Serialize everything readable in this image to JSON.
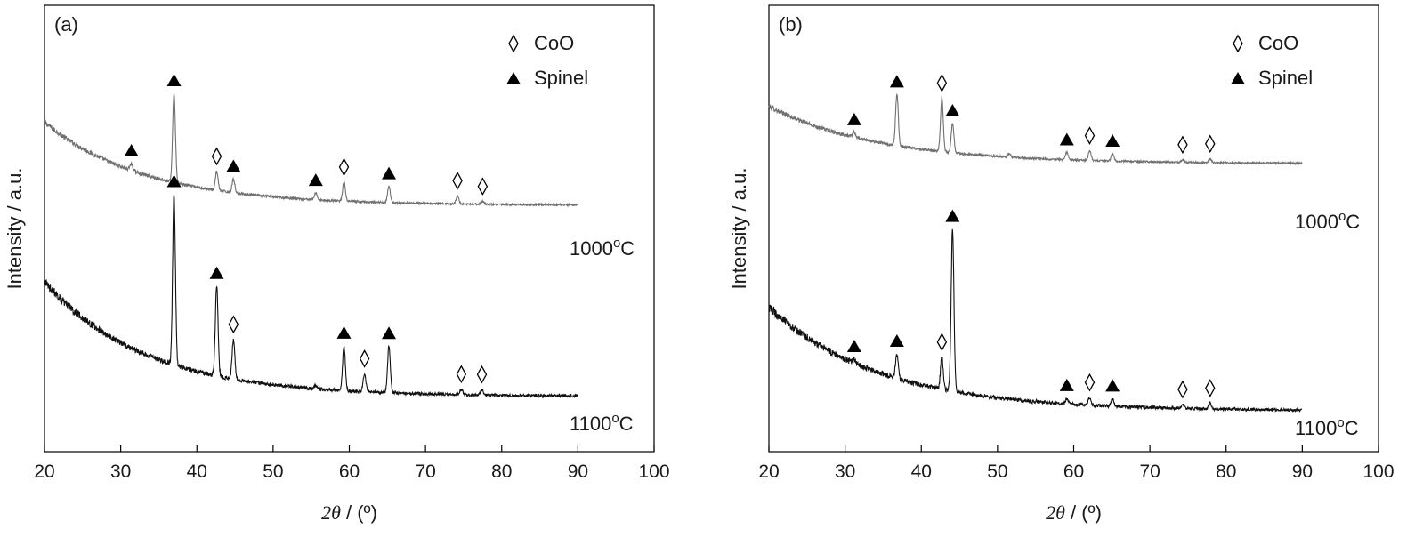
{
  "chart_data": [
    {
      "type": "line",
      "panel_label": "(a)",
      "xlabel_symbol": "2θ",
      "xlabel_unit": " / (º)",
      "ylabel": "Intensity / a.u.",
      "xlim": [
        20,
        100
      ],
      "x_ticks": [
        20,
        30,
        40,
        50,
        60,
        70,
        80,
        90,
        100
      ],
      "legend": {
        "position": "top-right",
        "entries": [
          {
            "marker": "diamond-open",
            "label": "CoO"
          },
          {
            "marker": "triangle-filled",
            "label": "Spinel"
          }
        ]
      },
      "series": [
        {
          "name": "1000ºC",
          "label_text": "1000ºC",
          "color": "#707070",
          "x_range": [
            20,
            90
          ],
          "baseline_start": 0.78,
          "baseline_end": 0.165,
          "decay": 11,
          "noise": 0.012,
          "peaks": [
            {
              "x": 31.4,
              "h": 0.05,
              "marker": "triangle-filled"
            },
            {
              "x": 37.0,
              "h": 0.66,
              "marker": "triangle-filled"
            },
            {
              "x": 42.6,
              "h": 0.14,
              "marker": "diamond-open"
            },
            {
              "x": 44.8,
              "h": 0.1,
              "marker": "triangle-filled"
            },
            {
              "x": 55.6,
              "h": 0.05,
              "marker": "triangle-filled"
            },
            {
              "x": 59.3,
              "h": 0.14,
              "marker": "diamond-open"
            },
            {
              "x": 65.2,
              "h": 0.12,
              "marker": "triangle-filled"
            },
            {
              "x": 74.2,
              "h": 0.06,
              "marker": "diamond-open"
            },
            {
              "x": 77.5,
              "h": 0.02,
              "marker": "diamond-open"
            }
          ]
        },
        {
          "name": "1100ºC",
          "label_text": "1100ºC",
          "color": "#111111",
          "x_range": [
            20,
            90
          ],
          "baseline_start": 0.7,
          "baseline_end": 0.06,
          "decay": 11,
          "noise": 0.014,
          "peaks": [
            {
              "x": 37.0,
              "h": 0.95,
              "marker": "triangle-filled"
            },
            {
              "x": 42.6,
              "h": 0.5,
              "marker": "triangle-filled"
            },
            {
              "x": 44.8,
              "h": 0.22,
              "marker": "diamond-open"
            },
            {
              "x": 55.6,
              "h": 0.02,
              "marker": null
            },
            {
              "x": 59.3,
              "h": 0.25,
              "marker": "triangle-filled"
            },
            {
              "x": 62.0,
              "h": 0.1,
              "marker": "diamond-open"
            },
            {
              "x": 65.2,
              "h": 0.26,
              "marker": "triangle-filled"
            },
            {
              "x": 74.7,
              "h": 0.03,
              "marker": "diamond-open"
            },
            {
              "x": 77.4,
              "h": 0.03,
              "marker": "diamond-open"
            }
          ]
        }
      ]
    },
    {
      "type": "line",
      "panel_label": "(b)",
      "xlabel_symbol": "2θ",
      "xlabel_unit": " / (º)",
      "ylabel": "Intensity / a.u.",
      "xlim": [
        20,
        100
      ],
      "x_ticks": [
        20,
        30,
        40,
        50,
        60,
        70,
        80,
        90,
        100
      ],
      "legend": {
        "position": "top-right",
        "entries": [
          {
            "marker": "diamond-open",
            "label": "CoO"
          },
          {
            "marker": "triangle-filled",
            "label": "Spinel"
          }
        ]
      },
      "series": [
        {
          "name": "1000ºC",
          "label_text": "1000ºC",
          "color": "#707070",
          "x_range": [
            20,
            90
          ],
          "baseline_start": 0.82,
          "baseline_end": 0.35,
          "decay": 10,
          "noise": 0.012,
          "peaks": [
            {
              "x": 31.2,
              "h": 0.04,
              "marker": "triangle-filled"
            },
            {
              "x": 36.8,
              "h": 0.42,
              "marker": "triangle-filled"
            },
            {
              "x": 42.7,
              "h": 0.44,
              "marker": "diamond-open"
            },
            {
              "x": 44.1,
              "h": 0.24,
              "marker": "triangle-filled"
            },
            {
              "x": 51.5,
              "h": 0.03,
              "marker": null
            },
            {
              "x": 59.1,
              "h": 0.06,
              "marker": "triangle-filled"
            },
            {
              "x": 62.1,
              "h": 0.08,
              "marker": "diamond-open"
            },
            {
              "x": 65.1,
              "h": 0.06,
              "marker": "triangle-filled"
            },
            {
              "x": 74.3,
              "h": 0.02,
              "marker": "diamond-open"
            },
            {
              "x": 77.9,
              "h": 0.03,
              "marker": "diamond-open"
            }
          ]
        },
        {
          "name": "1100ºC",
          "label_text": "1100ºC",
          "color": "#111111",
          "x_range": [
            20,
            90
          ],
          "baseline_start": 0.55,
          "baseline_end": 0.0,
          "decay": 10,
          "noise": 0.014,
          "peaks": [
            {
              "x": 31.2,
              "h": 0.02,
              "marker": "triangle-filled"
            },
            {
              "x": 36.8,
              "h": 0.13,
              "marker": "triangle-filled"
            },
            {
              "x": 42.7,
              "h": 0.17,
              "marker": "diamond-open"
            },
            {
              "x": 44.1,
              "h": 0.86,
              "marker": "triangle-filled"
            },
            {
              "x": 59.1,
              "h": 0.03,
              "marker": "triangle-filled"
            },
            {
              "x": 62.1,
              "h": 0.04,
              "marker": "diamond-open"
            },
            {
              "x": 65.1,
              "h": 0.04,
              "marker": "triangle-filled"
            },
            {
              "x": 74.3,
              "h": 0.02,
              "marker": "diamond-open"
            },
            {
              "x": 77.9,
              "h": 0.03,
              "marker": "diamond-open"
            }
          ]
        }
      ]
    }
  ]
}
